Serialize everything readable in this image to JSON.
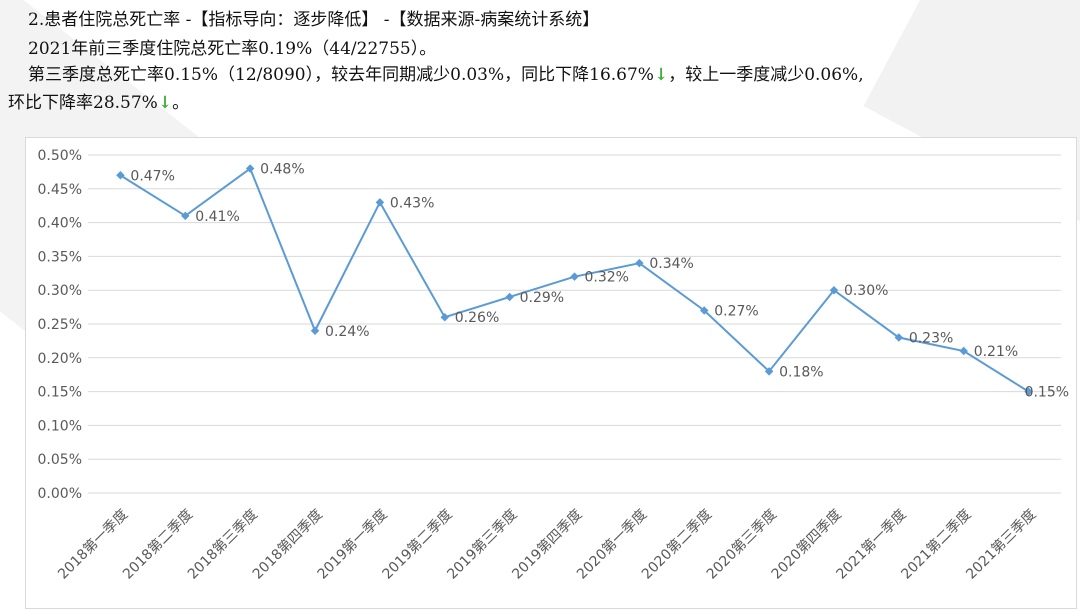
{
  "header": {
    "line1": "2.患者住院总死亡率 -【指标导向：逐步降低】 -【数据来源-病案统计系统】",
    "line2": "2021年前三季度住院总死亡率0.19%（44/22755）。",
    "line3_part1": "第三季度总死亡率0.15%（12/8090），较去年同期减少0.03%，同比下降16.67%",
    "arrow": "↓",
    "line3_part2": "，较上一季度减少0.06%,",
    "line4_part1": "环比下降率28.57%",
    "line4_part2": "。"
  },
  "colors": {
    "line": "#5b9bd5",
    "arrow": "#3daf3d",
    "grid": "#d9d9d9",
    "axis_text": "#595959"
  },
  "chart_data": {
    "type": "line",
    "categories": [
      "2018第一季度",
      "2018第二季度",
      "2018第三季度",
      "2018第四季度",
      "2019第一季度",
      "2019第二季度",
      "2019第三季度",
      "2019第四季度",
      "2020第一季度",
      "2020第二季度",
      "2020第三季度",
      "2020第四季度",
      "2021第一季度",
      "2021第二季度",
      "2021第三季度"
    ],
    "values": [
      0.47,
      0.41,
      0.48,
      0.24,
      0.43,
      0.26,
      0.29,
      0.32,
      0.34,
      0.27,
      0.18,
      0.3,
      0.23,
      0.21,
      0.15
    ],
    "data_labels": [
      "0.47%",
      "0.41%",
      "0.48%",
      "0.24%",
      "0.43%",
      "0.26%",
      "0.29%",
      "0.32%",
      "0.34%",
      "0.27%",
      "0.18%",
      "0.30%",
      "0.23%",
      "0.21%",
      "0.15%"
    ],
    "y_ticks": [
      "0.00%",
      "0.05%",
      "0.10%",
      "0.15%",
      "0.20%",
      "0.25%",
      "0.30%",
      "0.35%",
      "0.40%",
      "0.45%",
      "0.50%"
    ],
    "ylim": [
      0,
      0.5
    ],
    "grid": true
  }
}
